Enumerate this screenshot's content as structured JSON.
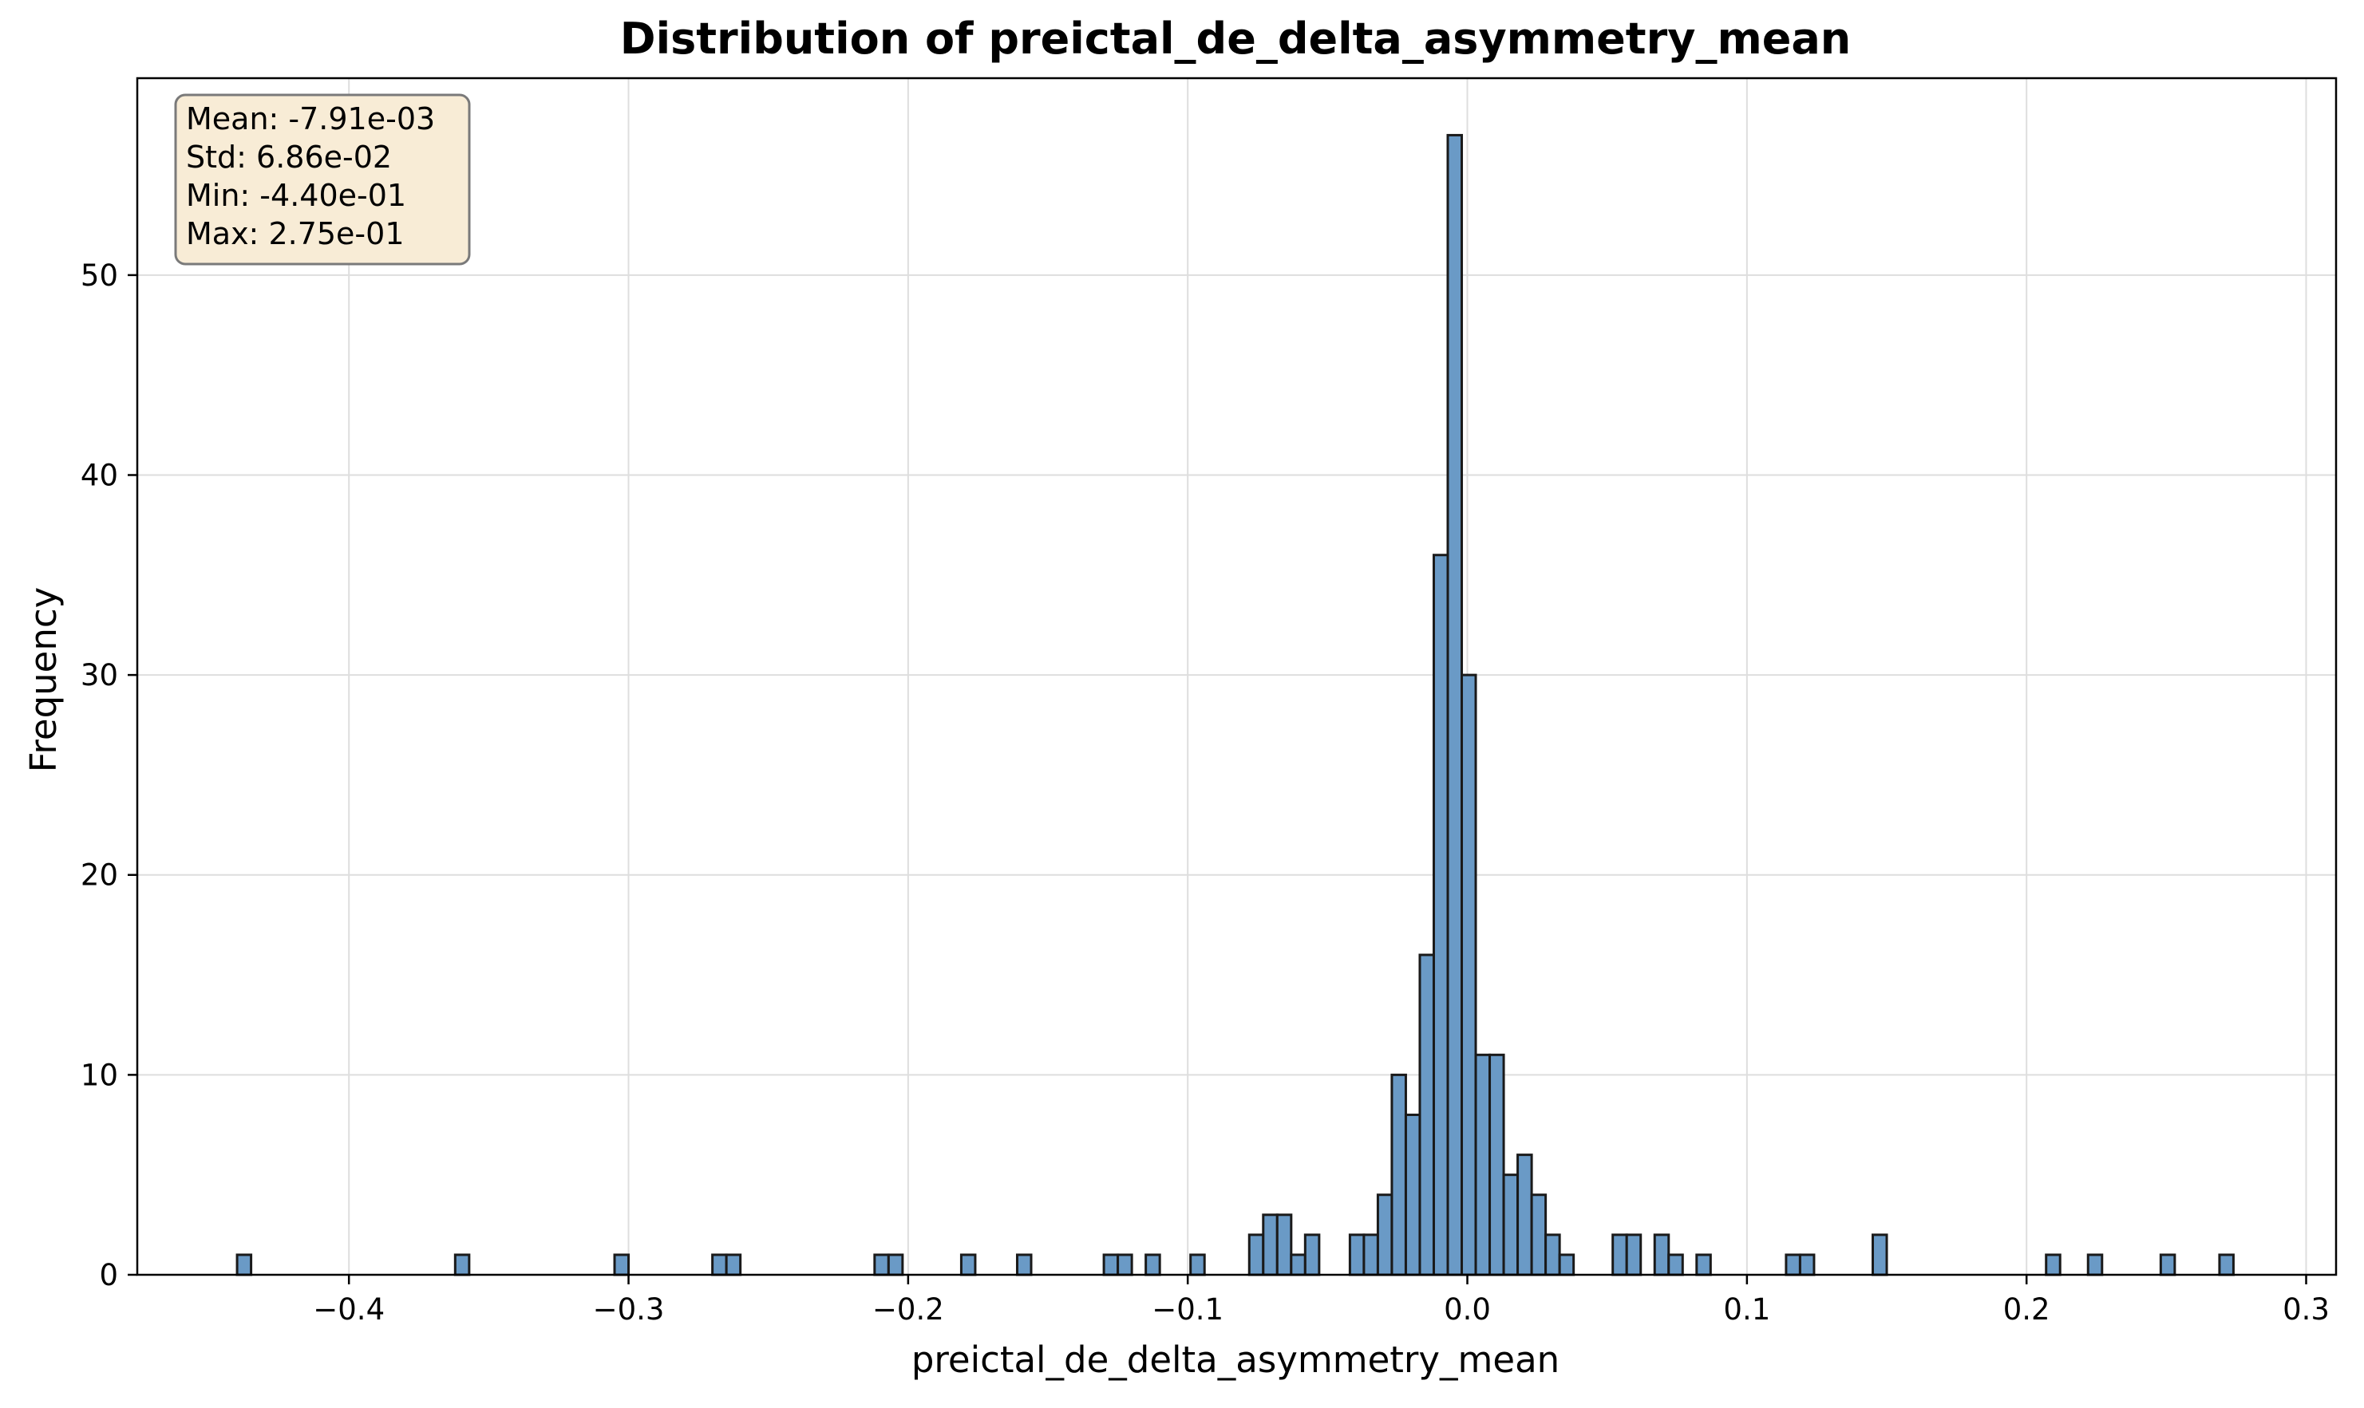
{
  "chart_data": {
    "type": "bar",
    "title": "Distribution of preictal_de_delta_asymmetry_mean",
    "xlabel": "preictal_de_delta_asymmetry_mean",
    "ylabel": "Frequency",
    "xlim": [
      -0.4757,
      0.3107
    ],
    "ylim": [
      0,
      59.85
    ],
    "bin_width": 0.005,
    "xticks": [
      -0.4,
      -0.3,
      -0.2,
      -0.1,
      0.0,
      0.1,
      0.2,
      0.3
    ],
    "xtick_labels": [
      "−0.4",
      "−0.3",
      "−0.2",
      "−0.1",
      "0.0",
      "0.1",
      "0.2",
      "0.3"
    ],
    "yticks": [
      0,
      10,
      20,
      30,
      40,
      50
    ],
    "ytick_labels": [
      "0",
      "10",
      "20",
      "30",
      "40",
      "50"
    ],
    "grid": true,
    "bar_color": "#6a9ac6",
    "edge_color": "#1a1a1a",
    "bins": [
      {
        "x0": -0.44,
        "count": 1
      },
      {
        "x0": -0.362,
        "count": 1
      },
      {
        "x0": -0.305,
        "count": 1
      },
      {
        "x0": -0.27,
        "count": 1
      },
      {
        "x0": -0.265,
        "count": 1
      },
      {
        "x0": -0.212,
        "count": 1
      },
      {
        "x0": -0.207,
        "count": 1
      },
      {
        "x0": -0.181,
        "count": 1
      },
      {
        "x0": -0.161,
        "count": 1
      },
      {
        "x0": -0.13,
        "count": 1
      },
      {
        "x0": -0.125,
        "count": 1
      },
      {
        "x0": -0.115,
        "count": 1
      },
      {
        "x0": -0.099,
        "count": 1
      },
      {
        "x0": -0.078,
        "count": 2
      },
      {
        "x0": -0.073,
        "count": 3
      },
      {
        "x0": -0.068,
        "count": 3
      },
      {
        "x0": -0.063,
        "count": 1
      },
      {
        "x0": -0.058,
        "count": 2
      },
      {
        "x0": -0.042,
        "count": 2
      },
      {
        "x0": -0.037,
        "count": 2
      },
      {
        "x0": -0.032,
        "count": 4
      },
      {
        "x0": -0.027,
        "count": 10
      },
      {
        "x0": -0.022,
        "count": 8
      },
      {
        "x0": -0.017,
        "count": 16
      },
      {
        "x0": -0.012,
        "count": 36
      },
      {
        "x0": -0.007,
        "count": 57
      },
      {
        "x0": -0.002,
        "count": 30
      },
      {
        "x0": 0.003,
        "count": 11
      },
      {
        "x0": 0.008,
        "count": 11
      },
      {
        "x0": 0.013,
        "count": 5
      },
      {
        "x0": 0.018,
        "count": 6
      },
      {
        "x0": 0.023,
        "count": 4
      },
      {
        "x0": 0.028,
        "count": 2
      },
      {
        "x0": 0.033,
        "count": 1
      },
      {
        "x0": 0.052,
        "count": 2
      },
      {
        "x0": 0.057,
        "count": 2
      },
      {
        "x0": 0.067,
        "count": 2
      },
      {
        "x0": 0.072,
        "count": 1
      },
      {
        "x0": 0.082,
        "count": 1
      },
      {
        "x0": 0.114,
        "count": 1
      },
      {
        "x0": 0.119,
        "count": 1
      },
      {
        "x0": 0.145,
        "count": 2
      },
      {
        "x0": 0.207,
        "count": 1
      },
      {
        "x0": 0.222,
        "count": 1
      },
      {
        "x0": 0.248,
        "count": 1
      },
      {
        "x0": 0.269,
        "count": 1
      }
    ],
    "stats_box": {
      "lines": [
        "Mean: -7.91e-03",
        "Std: 6.86e-02",
        "Min: -4.40e-01",
        "Max: 2.75e-01"
      ],
      "background": "#f8ecd6",
      "border": "#7a7a7a",
      "placement": "top-left"
    }
  }
}
